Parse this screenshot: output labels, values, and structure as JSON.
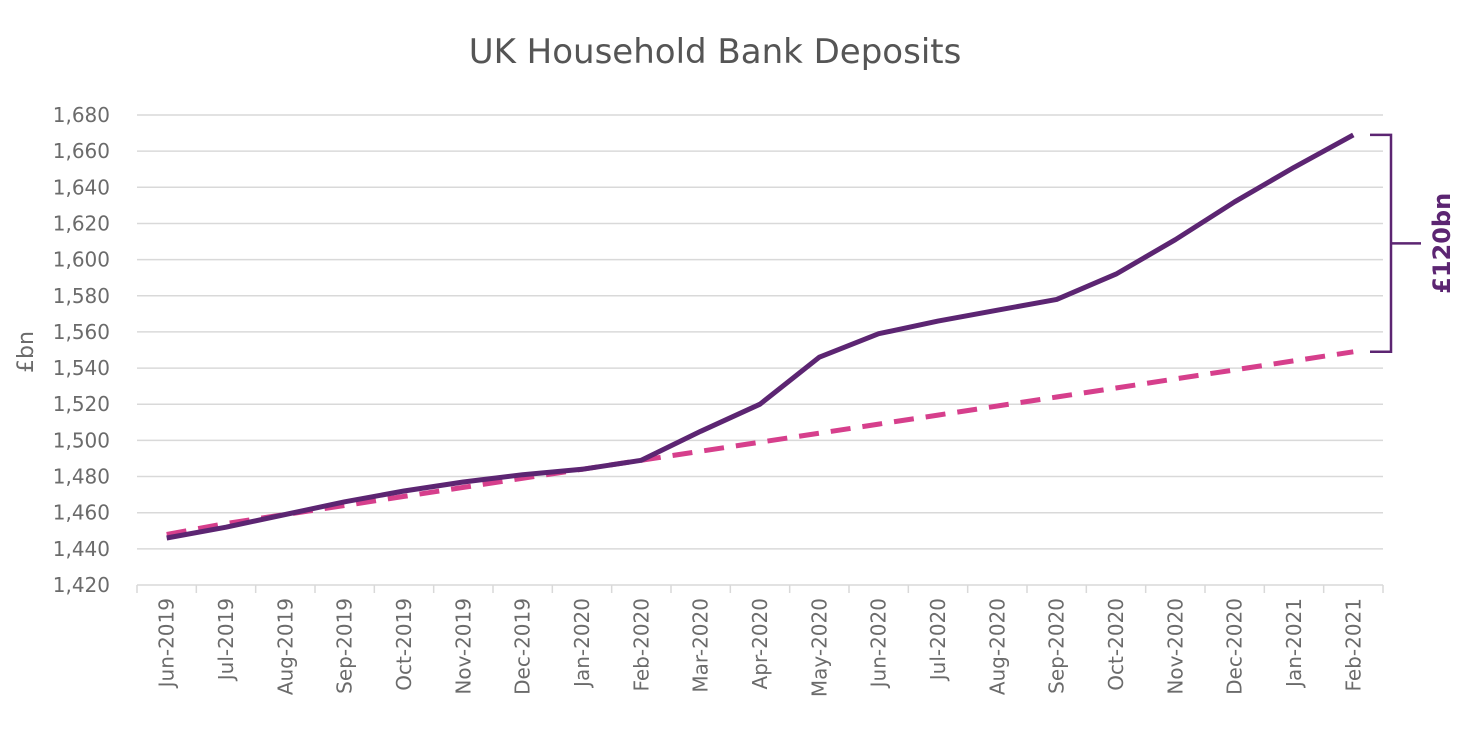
{
  "colors": {
    "actual": "#5c2572",
    "trend": "#d63f8c",
    "grid": "#d9d9d9",
    "text": "#6b6b6b",
    "title": "#555555"
  },
  "chart_data": {
    "type": "line",
    "title": "UK Household Bank Deposits",
    "xlabel": "",
    "ylabel": "£bn",
    "ylim": [
      1420,
      1680
    ],
    "yticks": [
      1420,
      1440,
      1460,
      1480,
      1500,
      1520,
      1540,
      1560,
      1580,
      1600,
      1620,
      1640,
      1660,
      1680
    ],
    "ytick_labels": [
      "1,420",
      "1,440",
      "1,460",
      "1,480",
      "1,500",
      "1,520",
      "1,540",
      "1,560",
      "1,580",
      "1,600",
      "1,620",
      "1,640",
      "1,660",
      "1,680"
    ],
    "grid": "horizontal",
    "legend": "none",
    "categories": [
      "Jun-2019",
      "Jul-2019",
      "Aug-2019",
      "Sep-2019",
      "Oct-2019",
      "Nov-2019",
      "Dec-2019",
      "Jan-2020",
      "Feb-2020",
      "Mar-2020",
      "Apr-2020",
      "May-2020",
      "Jun-2020",
      "Jul-2020",
      "Aug-2020",
      "Sep-2020",
      "Oct-2020",
      "Nov-2020",
      "Dec-2020",
      "Jan-2021",
      "Feb-2021"
    ],
    "series": [
      {
        "style": "solid",
        "values": [
          1446,
          1452,
          1459,
          1466,
          1472,
          1477,
          1481,
          1484,
          1489,
          1505,
          1520,
          1546,
          1559,
          1566,
          1572,
          1578,
          1592,
          1611,
          1632,
          1651,
          1669
        ]
      },
      {
        "style": "dashed",
        "values": [
          1448,
          1454,
          1459,
          1464,
          1469,
          1474,
          1479,
          1484,
          1489,
          1494,
          1499,
          1504,
          1509,
          1514,
          1519,
          1524,
          1529,
          1534,
          1539,
          1544,
          1549
        ]
      }
    ],
    "annotations": [
      {
        "text": "£120bn",
        "type": "bracket",
        "from": 1549,
        "to": 1669
      }
    ]
  }
}
